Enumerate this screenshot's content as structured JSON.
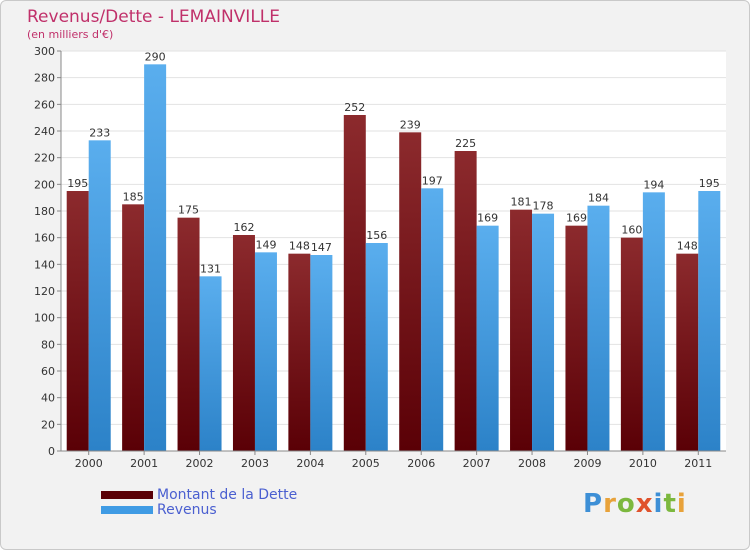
{
  "header": {
    "title": "Revenus/Dette - LEMAINVILLE",
    "subtitle": "(en milliers d'€)"
  },
  "colors": {
    "dette": "#7a1518",
    "revenus": "#3f9be4",
    "frame_bg": "#f2f2f2",
    "plot_bg": "#ffffff",
    "grid": "#e2e2e2",
    "title": "#c0306a",
    "legend_text": "#4a5fd0"
  },
  "legend": {
    "items": [
      {
        "label": "Montant de la Dette",
        "color": "#7a1518"
      },
      {
        "label": "Revenus",
        "color": "#3f9be4"
      }
    ]
  },
  "logo": {
    "text": "Proxiti",
    "letter_colors": [
      "#3d8fd6",
      "#e8a23a",
      "#7cb83e",
      "#e0522c",
      "#3d8fd6",
      "#7cb83e",
      "#e8a23a"
    ]
  },
  "chart_data": {
    "type": "bar",
    "title": "Revenus/Dette - LEMAINVILLE",
    "subtitle": "(en milliers d'€)",
    "categories": [
      "2000",
      "2001",
      "2002",
      "2003",
      "2004",
      "2005",
      "2006",
      "2007",
      "2008",
      "2009",
      "2010",
      "2011"
    ],
    "series": [
      {
        "name": "Montant de la Dette",
        "values": [
          195,
          185,
          175,
          162,
          148,
          252,
          239,
          225,
          181,
          169,
          160,
          148
        ]
      },
      {
        "name": "Revenus",
        "values": [
          233,
          290,
          131,
          149,
          147,
          156,
          197,
          169,
          178,
          184,
          194,
          195
        ]
      }
    ],
    "ylim": [
      0,
      300
    ],
    "yticks": [
      0,
      20,
      40,
      60,
      80,
      100,
      120,
      140,
      160,
      180,
      200,
      220,
      240,
      260,
      280,
      300
    ],
    "grid": true,
    "legend_position": "bottom-left"
  }
}
